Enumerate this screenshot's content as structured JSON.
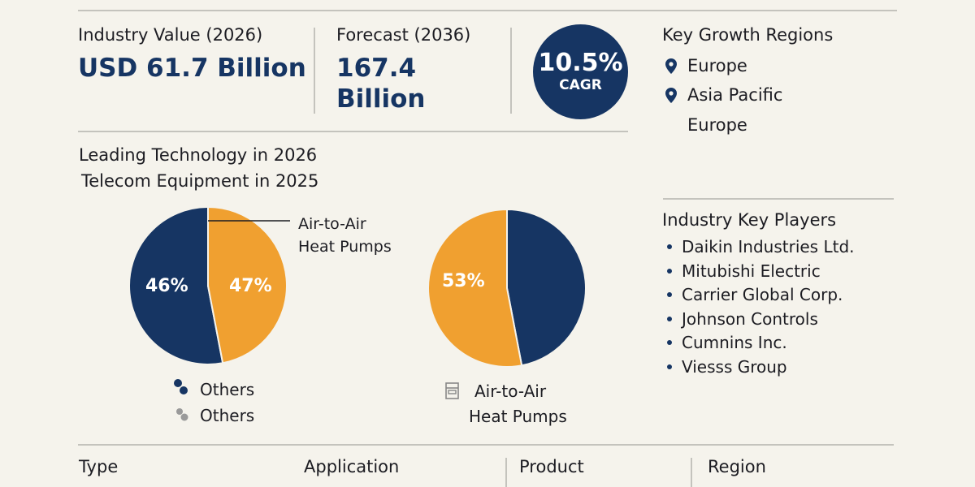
{
  "colors": {
    "navy": "#163563",
    "orange": "#f0a030",
    "bg": "#f5f3ec"
  },
  "metrics": {
    "industry_value_label": "Industry Value (2026)",
    "industry_value": "USD 61.7 Billion",
    "forecast_label": "Forecast (2036)",
    "forecast_value_line1": "167.4",
    "forecast_value_line2": "Billion",
    "cagr_value": "10.5%",
    "cagr_label": "CAGR"
  },
  "regions": {
    "title": "Key Growth Regions",
    "items": [
      "Europe",
      "Asia Pacific",
      "Europe"
    ],
    "icon": "map-pin-icon"
  },
  "technology": {
    "title_line1": "Leading Technology in 2026",
    "title_line2": "Telecom Equipment in 2025"
  },
  "key_players": {
    "title": "Industry Key Players",
    "items": [
      "Daikin Industries Ltd.",
      "Mitubishi Electric",
      "Carrier Global Corp.",
      "Johnson Controls",
      "Cumnins Inc.",
      "Viesss Group"
    ]
  },
  "chart_data": [
    {
      "type": "pie",
      "slices": [
        {
          "label": "Others",
          "value": 46,
          "color": "#163563"
        },
        {
          "label": "Air-to-Air Heat Pumps",
          "value": 47,
          "color": "#f0a030"
        }
      ],
      "data_labels": [
        "46%",
        "47%"
      ],
      "callout": {
        "line1": "Air-to-Air",
        "line2": "Heat Pumps"
      },
      "legend": [
        {
          "label": "Others",
          "icon": "navy-dots-icon"
        },
        {
          "label": "Others",
          "icon": "gray-dots-icon"
        }
      ]
    },
    {
      "type": "pie",
      "slices": [
        {
          "label": "Air-to-Air Heat Pumps",
          "value": 53,
          "color": "#f0a030"
        },
        {
          "label": "",
          "value": 47,
          "color": "#163563"
        }
      ],
      "data_labels": [
        "53%"
      ],
      "legend": [
        {
          "line1": "Air-to-Air",
          "line2": "Heat Pumps",
          "icon": "unit-icon"
        }
      ]
    }
  ],
  "bottom_tabs": [
    "Type",
    "Application",
    "Product",
    "Region"
  ]
}
